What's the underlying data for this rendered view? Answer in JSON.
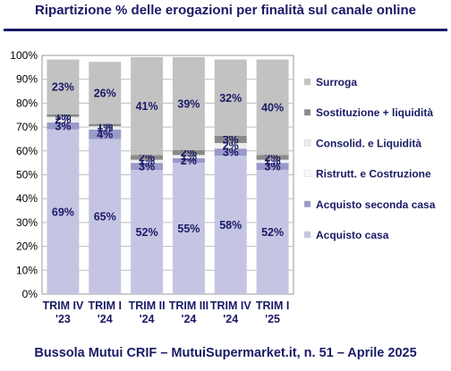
{
  "title": "Ripartizione % delle erogazioni per finalità sul canale online",
  "footer": "Bussola Mutui CRIF – MutuiSupermarket.it, n. 51 – Aprile 2025",
  "chart_data": {
    "type": "bar",
    "stacked": true,
    "categories": [
      [
        "TRIM IV",
        "'23"
      ],
      [
        "TRIM I",
        "'24"
      ],
      [
        "TRIM II",
        "'24"
      ],
      [
        "TRIM III",
        "'24"
      ],
      [
        "TRIM IV",
        "'24"
      ],
      [
        "TRIM I",
        "'25"
      ]
    ],
    "series": [
      {
        "name": "Acquisto casa",
        "color": "#c5c5e3",
        "values": [
          69,
          65,
          52,
          55,
          58,
          52
        ],
        "labels": [
          "69%",
          "65%",
          "52%",
          "55%",
          "58%",
          "52%"
        ]
      },
      {
        "name": "Acquisto seconda casa",
        "color": "#9a9ac8",
        "values": [
          3,
          4,
          3,
          2,
          3,
          3
        ],
        "labels": [
          "3%",
          "4%",
          "3%",
          "2%",
          "3%",
          "3%"
        ]
      },
      {
        "name": "Ristrutt. e Costruzione",
        "color": "#f8f8f8",
        "values": [
          0.3,
          0.3,
          0.3,
          0.3,
          0.3,
          0.3
        ],
        "labels": [
          "",
          "",
          "",
          "",
          "",
          ""
        ]
      },
      {
        "name": "Consolid. e Liquidità",
        "color": "#ececec",
        "values": [
          2,
          1,
          1,
          1,
          2,
          1
        ],
        "labels": [
          "2%",
          "1%",
          "1%",
          "1%",
          "2%",
          "1%"
        ]
      },
      {
        "name": "Sostituzione + liquidità",
        "color": "#8a8a8a",
        "values": [
          1,
          1,
          2,
          2,
          3,
          2
        ],
        "labels": [
          "1%",
          "1%",
          "2%",
          "2%",
          "3%",
          "2%"
        ]
      },
      {
        "name": "Surroga",
        "color": "#c2c2c2",
        "values": [
          23,
          26,
          41,
          39,
          32,
          40
        ],
        "labels": [
          "23%",
          "26%",
          "41%",
          "39%",
          "32%",
          "40%"
        ]
      }
    ],
    "ylim": [
      0,
      100
    ],
    "yticks": [
      "0%",
      "10%",
      "20%",
      "30%",
      "40%",
      "50%",
      "60%",
      "70%",
      "80%",
      "90%",
      "100%"
    ],
    "grid": true,
    "legend": "right"
  }
}
